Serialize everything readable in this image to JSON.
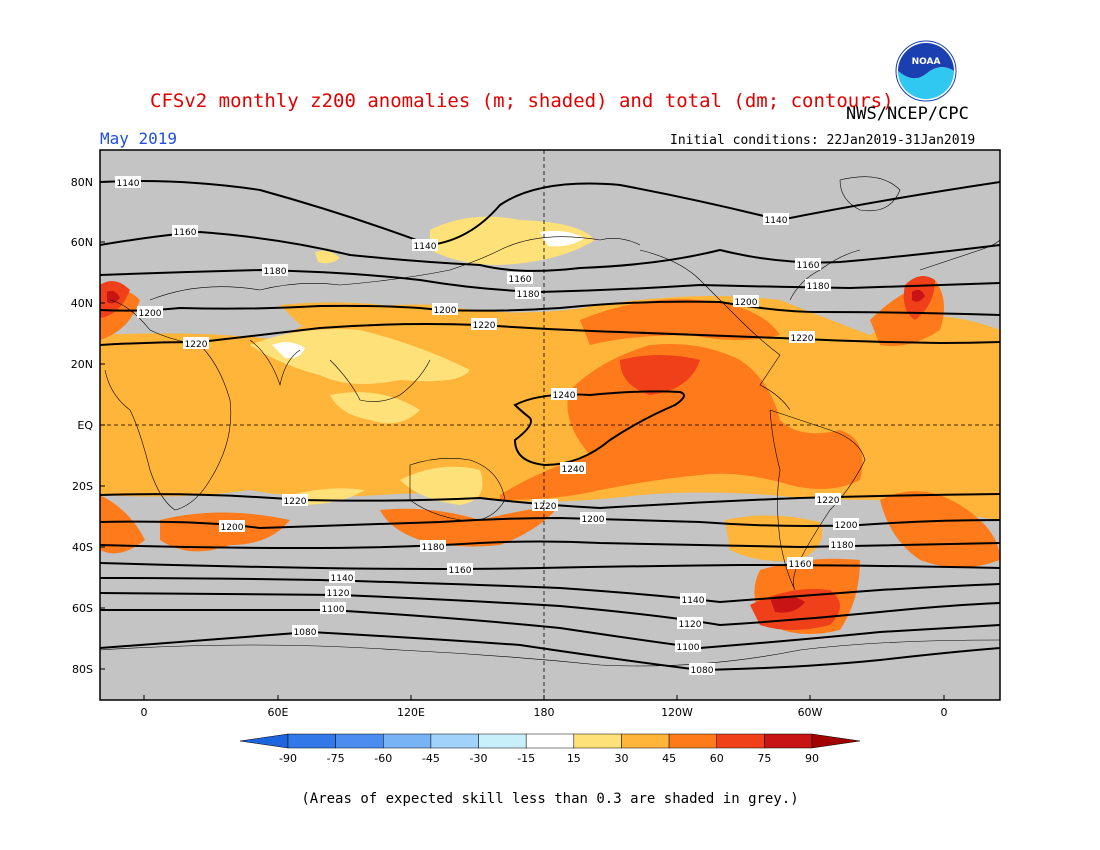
{
  "header": {
    "title": "CFSv2 monthly z200 anomalies (m; shaded) and total (dm; contours)",
    "agency": "NWS/NCEP/CPC",
    "month": "May 2019",
    "initial_conditions": "Initial conditions: 22Jan2019-31Jan2019",
    "logo_text": "NOAA"
  },
  "map": {
    "lat_labels": [
      "80N",
      "60N",
      "40N",
      "20N",
      "EQ",
      "20S",
      "40S",
      "60S",
      "80S"
    ],
    "lon_labels": [
      "0",
      "60E",
      "120E",
      "180",
      "120W",
      "60W",
      "0"
    ],
    "contours": [
      {
        "value": "1080",
        "label_text": "1080"
      },
      {
        "value": "1100",
        "label_text": "1100"
      },
      {
        "value": "1120",
        "label_text": "1120"
      },
      {
        "value": "1140",
        "label_text": "1140"
      },
      {
        "value": "1160",
        "label_text": "1160"
      },
      {
        "value": "1180",
        "label_text": "1180"
      },
      {
        "value": "1200",
        "label_text": "1200"
      },
      {
        "value": "1220",
        "label_text": "1220"
      },
      {
        "value": "1240",
        "label_text": "1240"
      }
    ],
    "colors": {
      "background_grey": "#c4c4c4",
      "c15_30": "#ffe17a",
      "c30_45": "#ffb43a",
      "c45_60": "#ff7a1a",
      "c60_75": "#f0401a",
      "c75_90": "#c81414",
      "low_skill": "#ffffff"
    }
  },
  "colorbar": {
    "ticks": [
      "-90",
      "-75",
      "-60",
      "-45",
      "-30",
      "-15",
      "15",
      "30",
      "45",
      "60",
      "75",
      "90"
    ],
    "colors": [
      "#1e64dc",
      "#3278e6",
      "#4b8cf0",
      "#78b4f5",
      "#a0d2fa",
      "#c8f0fa",
      "#ffffff",
      "#ffe17a",
      "#ffb43a",
      "#ff7a1a",
      "#f0401a",
      "#c81414",
      "#a00000"
    ]
  },
  "footnote": "(Areas of expected skill less than 0.3 are shaded in grey.)"
}
